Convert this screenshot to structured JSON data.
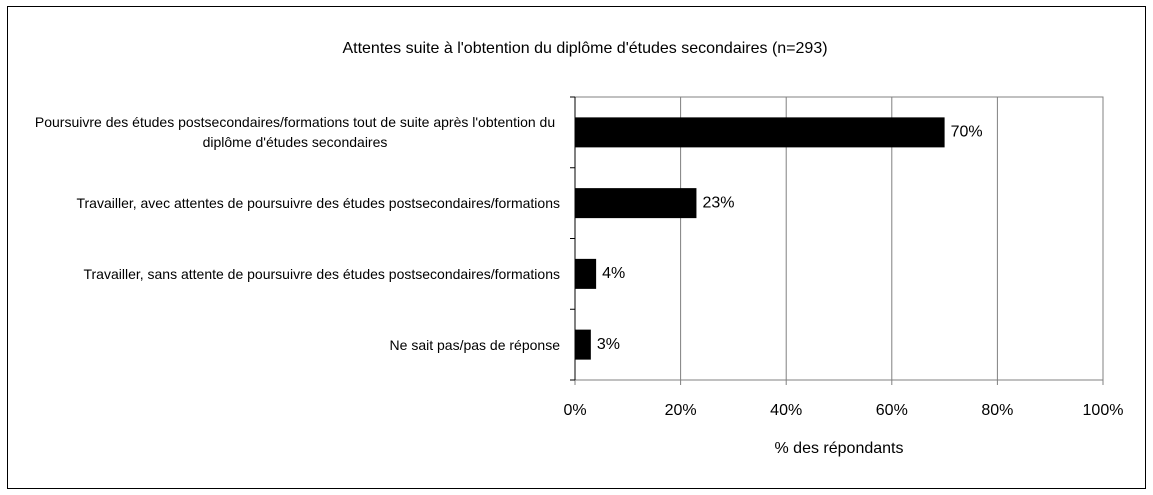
{
  "chart_data": {
    "type": "bar",
    "orientation": "horizontal",
    "title": "Attentes suite à l'obtention du diplôme d'études secondaires (n=293)",
    "categories": [
      "Poursuivre des études postsecondaires/formations tout de suite après l'obtention du diplôme d'études secondaires",
      "Travailler, avec attentes de poursuivre des études postsecondaires/formations",
      "Travailler, sans attente de poursuivre des études postsecondaires/formations",
      "Ne sait pas/pas de réponse"
    ],
    "values": [
      70,
      23,
      4,
      3
    ],
    "value_labels": [
      "70%",
      "23%",
      "4%",
      "3%"
    ],
    "color": "#000000",
    "xlabel": "% des répondants",
    "xlim": [
      0,
      100
    ],
    "xticks": [
      {
        "value": 0,
        "label": "0%"
      },
      {
        "value": 20,
        "label": "20%"
      },
      {
        "value": 40,
        "label": "40%"
      },
      {
        "value": 60,
        "label": "60%"
      },
      {
        "value": 80,
        "label": "80%"
      },
      {
        "value": 100,
        "label": "100%"
      }
    ],
    "grid": true
  }
}
